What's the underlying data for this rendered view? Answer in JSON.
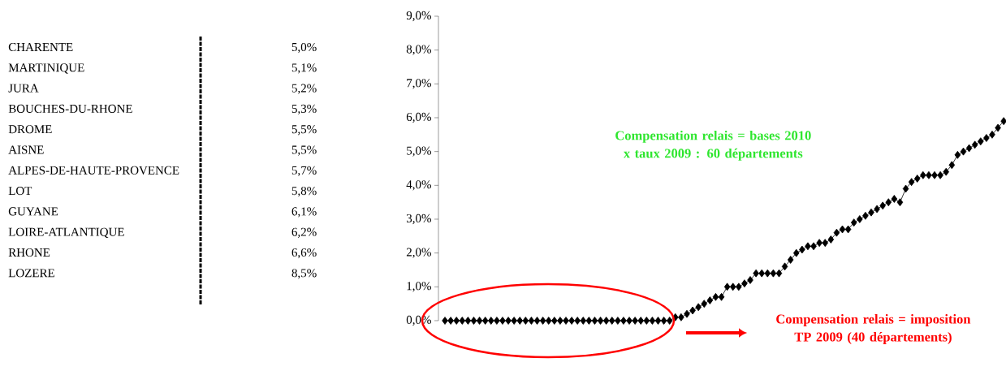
{
  "chart_data": [
    {
      "type": "other",
      "categories": [
        "CHARENTE",
        "MARTINIQUE",
        "JURA",
        "BOUCHES-DU-RHONE",
        "DROME",
        "AISNE",
        "ALPES-DE-HAUTE-PROVENCE",
        "LOT",
        "GUYANE",
        "LOIRE-ATLANTIQUE",
        "RHONE",
        "LOZERE"
      ],
      "value_labels": [
        "5,0%",
        "5,1%",
        "5,2%",
        "5,3%",
        "5,5%",
        "5,5%",
        "5,7%",
        "5,8%",
        "6,1%",
        "6,2%",
        "6,6%",
        "8,5%"
      ]
    },
    {
      "type": "line",
      "marker": "diamond",
      "categories": [
        null,
        null,
        null,
        null,
        null,
        null,
        null,
        null,
        null,
        null,
        null,
        null,
        null,
        null,
        null,
        null,
        null,
        null,
        null,
        null,
        null,
        null,
        null,
        null,
        null,
        null,
        null,
        null,
        null,
        null,
        null,
        null,
        null,
        null,
        null,
        null,
        null,
        null,
        null,
        null,
        null,
        null,
        null,
        null,
        null,
        null,
        null,
        null,
        null,
        null,
        null,
        null,
        null,
        null,
        null,
        null,
        null,
        null,
        null,
        null,
        null,
        null,
        null,
        null,
        null,
        null,
        null,
        null,
        null,
        null,
        null,
        null,
        null,
        null,
        null,
        null,
        null,
        null,
        null,
        null,
        null,
        null,
        null,
        null,
        null,
        null,
        null,
        null,
        null,
        null,
        null,
        null,
        null,
        null,
        null,
        null,
        null,
        null
      ],
      "series": [
        {
          "color": "#000000",
          "values": [
            0,
            0,
            0,
            0,
            0,
            0,
            0,
            0,
            0,
            0,
            0,
            0,
            0,
            0,
            0,
            0,
            0,
            0,
            0,
            0,
            0,
            0,
            0,
            0,
            0,
            0,
            0,
            0,
            0,
            0,
            0,
            0,
            0,
            0,
            0,
            0,
            0,
            0,
            0,
            0,
            0.1,
            0.1,
            0.2,
            0.3,
            0.4,
            0.5,
            0.6,
            0.7,
            0.7,
            1.0,
            1.0,
            1.0,
            1.1,
            1.2,
            1.4,
            1.4,
            1.4,
            1.4,
            1.4,
            1.6,
            1.8,
            2.0,
            2.1,
            2.2,
            2.2,
            2.3,
            2.3,
            2.4,
            2.6,
            2.7,
            2.7,
            2.9,
            3.0,
            3.1,
            3.2,
            3.3,
            3.4,
            3.5,
            3.6,
            3.5,
            3.9,
            4.1,
            4.2,
            4.3,
            4.3,
            4.3,
            4.3,
            4.4,
            4.6,
            4.9,
            5.0,
            5.1,
            5.2,
            5.3,
            5.4,
            5.5,
            5.7,
            5.9
          ]
        }
      ],
      "ylim": [
        0,
        9
      ],
      "yticks": [
        {
          "value": 0,
          "label": "0,0%"
        },
        {
          "value": 1,
          "label": "1,0%"
        },
        {
          "value": 2,
          "label": "2,0%"
        },
        {
          "value": 3,
          "label": "3,0%"
        },
        {
          "value": 4,
          "label": "4,0%"
        },
        {
          "value": 5,
          "label": "5,0%"
        },
        {
          "value": 6,
          "label": "6,0%"
        },
        {
          "value": 7,
          "label": "7,0%"
        },
        {
          "value": 8,
          "label": "8,0%"
        },
        {
          "value": 9,
          "label": "9,0%"
        }
      ],
      "tick_labels": "y",
      "annotations": [
        "Compensation relais = bases 2010 x taux 2009 : 60 départements",
        "Compensation relais = imposition TP 2009 (40 départements)"
      ]
    }
  ]
}
